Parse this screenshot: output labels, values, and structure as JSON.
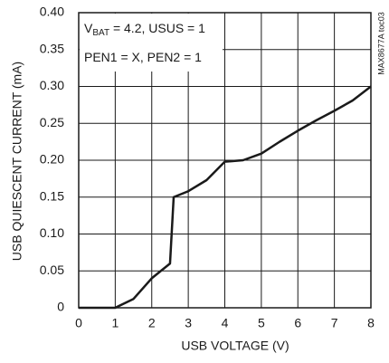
{
  "chart_data": {
    "type": "line",
    "x_label": "USB VOLTAGE (V)",
    "y_label": "USB QUIESCENT CURRENT (mA)",
    "annotations": [
      {
        "parts": [
          "V",
          "BAT",
          " = 4.2, USUS = 1"
        ]
      },
      {
        "parts": [
          "PEN1 = X, PEN2 = 1"
        ]
      }
    ],
    "side_note": "MAX8677A toc03",
    "series": [
      {
        "color": "#1a1a1a",
        "x": [
          0,
          1,
          1.5,
          2,
          2.5,
          2.6,
          3,
          3.5,
          4,
          4.5,
          5,
          5.5,
          6,
          6.5,
          7,
          7.5,
          8
        ],
        "values": [
          0,
          0,
          0.012,
          0.04,
          0.06,
          0.15,
          0.158,
          0.173,
          0.198,
          0.2,
          0.209,
          0.225,
          0.24,
          0.254,
          0.267,
          0.281,
          0.3
        ]
      }
    ],
    "xlim": [
      0,
      8
    ],
    "xticks": [
      0,
      1,
      2,
      3,
      4,
      5,
      6,
      7,
      8
    ],
    "ylim": [
      0,
      0.4
    ],
    "yticks": [
      0,
      0.05,
      {
        "value": 0.1,
        "label": "0.10"
      },
      0.15,
      {
        "value": 0.2,
        "label": "0.20"
      },
      0.25,
      {
        "value": 0.3,
        "label": "0.30"
      },
      0.35,
      {
        "value": 0.4,
        "label": "0.40"
      }
    ],
    "grid": true
  }
}
